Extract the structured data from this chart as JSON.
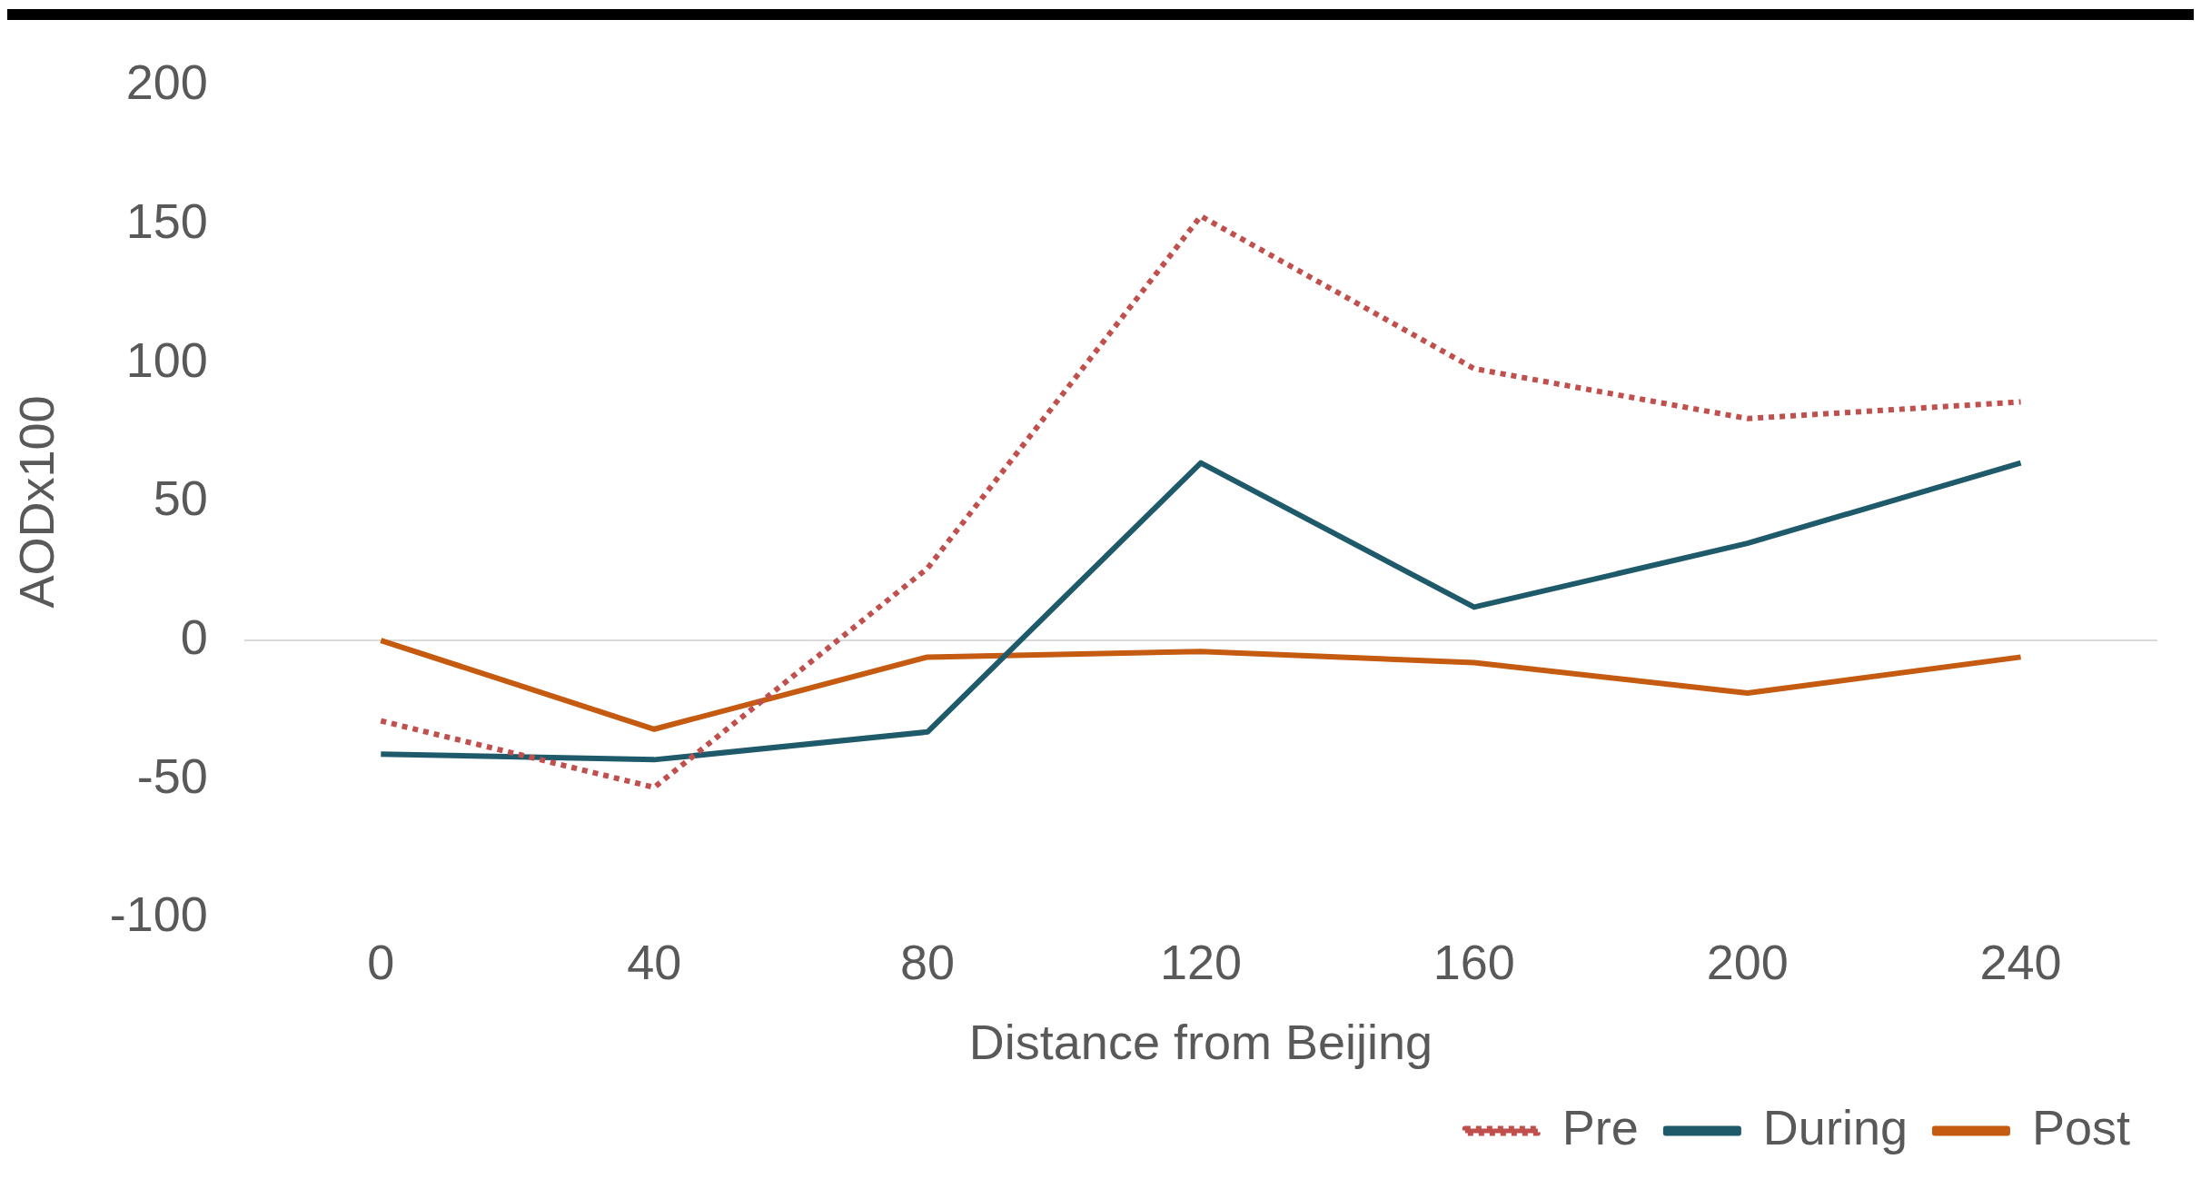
{
  "chart_data": {
    "type": "line",
    "xlabel": "Distance from Beijing",
    "ylabel": "AODx100",
    "categories": [
      "0",
      "40",
      "80",
      "120",
      "160",
      "200",
      "240"
    ],
    "series": [
      {
        "name": "Pre",
        "color": "#c0504d",
        "line_style": "dotted",
        "values": [
          -29,
          -53,
          26,
          153,
          98,
          80,
          86
        ]
      },
      {
        "name": "During",
        "color": "#1f5a6b",
        "line_style": "solid",
        "values": [
          -41,
          -43,
          -33,
          64,
          12,
          35,
          64
        ]
      },
      {
        "name": "Post",
        "color": "#c55a11",
        "line_style": "solid",
        "values": [
          0,
          -32,
          -6,
          -4,
          -8,
          -19,
          -6
        ]
      }
    ],
    "ylim": [
      -100,
      200
    ],
    "yticks": [
      -100,
      -50,
      0,
      50,
      100,
      150,
      200
    ],
    "grid": false,
    "ref_lines": [
      {
        "axis": "y",
        "value": 0,
        "color": "#d9d9d9"
      }
    ],
    "legend": "bottom right",
    "marker": "none"
  }
}
